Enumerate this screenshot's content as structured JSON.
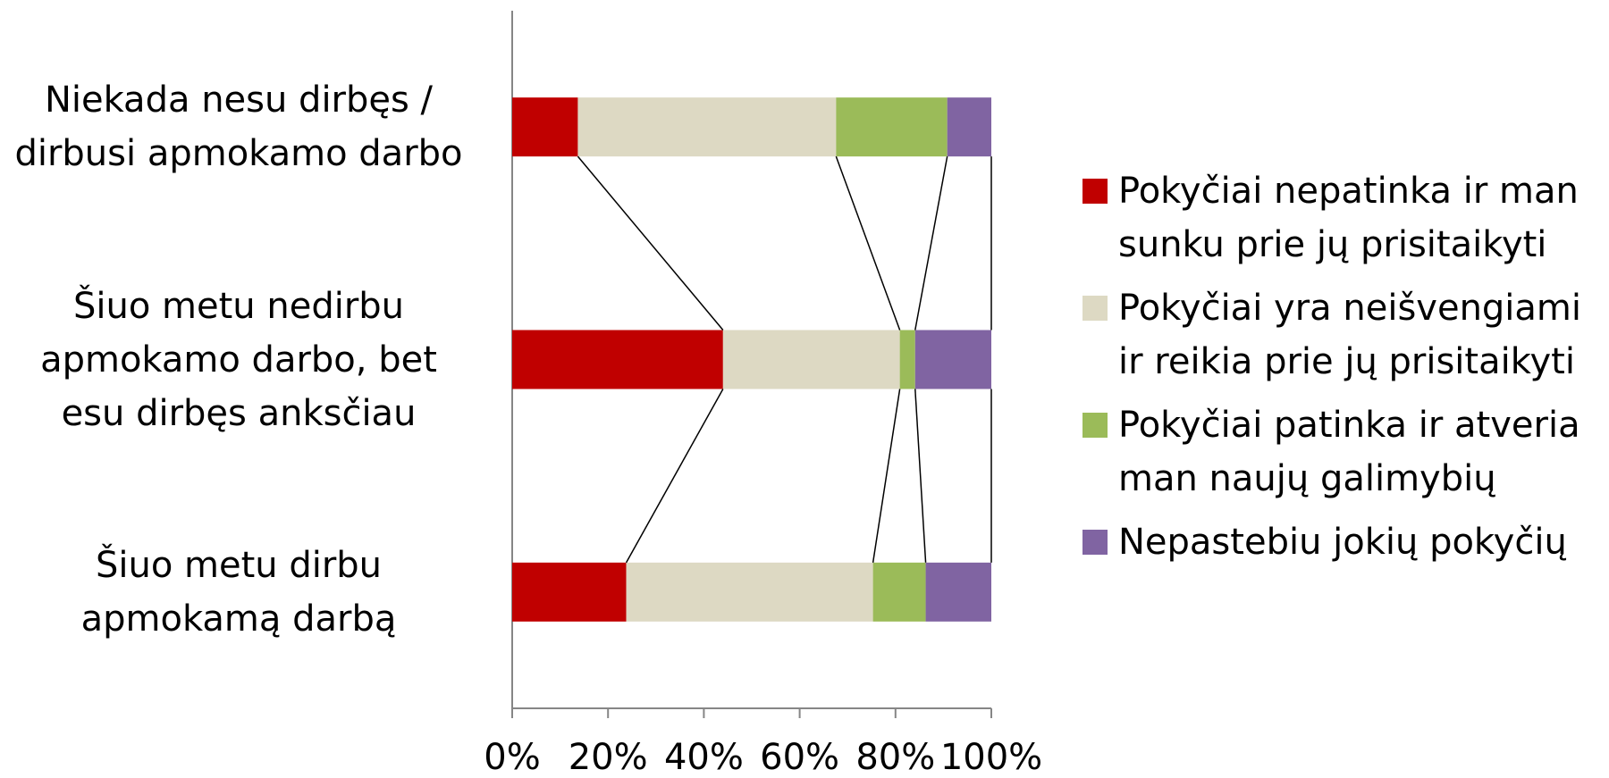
{
  "chart_data": {
    "type": "stacked-bar-horizontal",
    "categories": [
      "Niekada nesu dirbęs / dirbusi apmokamo darbo",
      "Šiuo metu nedirbu apmokamo darbo, bet esu dirbęs anksčiau",
      "Šiuo metu dirbu apmokamą darbą"
    ],
    "series": [
      {
        "name": "Pokyčiai nepatinka ir man sunku prie jų prisitaikyti",
        "color": "#c00000",
        "values": [
          13.7,
          44.0,
          23.8
        ]
      },
      {
        "name": "Pokyčiai yra neišvengiami ir reikia prie jų prisitaikyti",
        "color": "#ddd9c3",
        "values": [
          53.9,
          36.9,
          51.5
        ]
      },
      {
        "name": "Pokyčiai patinka ir atveria man naujų galimybių",
        "color": "#9bbb59",
        "values": [
          23.2,
          3.2,
          11.0
        ]
      },
      {
        "name": "Nepastebiu jokių pokyčių",
        "color": "#8064a2",
        "values": [
          9.2,
          15.9,
          13.7
        ]
      }
    ],
    "xlim": [
      0,
      100
    ],
    "xticks": [
      {
        "value": 0,
        "label": "0%"
      },
      {
        "value": 20,
        "label": "20%"
      },
      {
        "value": 40,
        "label": "40%"
      },
      {
        "value": 60,
        "label": "60%"
      },
      {
        "value": 80,
        "label": "80%"
      },
      {
        "value": 100,
        "label": "100%"
      }
    ],
    "legend": "right",
    "series_lines": true
  }
}
